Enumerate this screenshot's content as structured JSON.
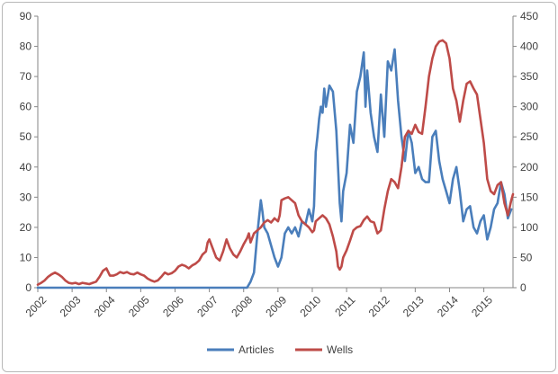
{
  "chart_data": {
    "type": "line",
    "title": "",
    "xlabel": "",
    "ylabel_left": "",
    "ylabel_right": "",
    "x_tick_labels": [
      "2002",
      "2003",
      "2004",
      "2005",
      "2006",
      "2007",
      "2008",
      "2009",
      "2010",
      "2011",
      "2012",
      "2013",
      "2014",
      "2015"
    ],
    "x_range": [
      2002.0,
      2015.85
    ],
    "y_left": {
      "lim": [
        0,
        90
      ],
      "ticks": [
        0,
        10,
        20,
        30,
        40,
        50,
        60,
        70,
        80,
        90
      ]
    },
    "y_right": {
      "lim": [
        0,
        450
      ],
      "ticks": [
        0,
        50,
        100,
        150,
        200,
        250,
        300,
        350,
        400,
        450
      ]
    },
    "grid": false,
    "legend": {
      "placement": "bottom",
      "items": [
        "Articles",
        "Wells"
      ]
    },
    "series": [
      {
        "name": "Articles",
        "axis": "left",
        "color": "#4a7ebb",
        "points": [
          [
            2002.0,
            0
          ],
          [
            2008.1,
            0
          ],
          [
            2008.2,
            2
          ],
          [
            2008.3,
            5
          ],
          [
            2008.4,
            18
          ],
          [
            2008.5,
            29
          ],
          [
            2008.55,
            25
          ],
          [
            2008.6,
            20
          ],
          [
            2008.7,
            18
          ],
          [
            2008.8,
            14
          ],
          [
            2008.9,
            10
          ],
          [
            2009.0,
            7
          ],
          [
            2009.1,
            10
          ],
          [
            2009.2,
            18
          ],
          [
            2009.3,
            20
          ],
          [
            2009.4,
            18
          ],
          [
            2009.5,
            20
          ],
          [
            2009.6,
            17
          ],
          [
            2009.7,
            22
          ],
          [
            2009.8,
            21
          ],
          [
            2009.9,
            26
          ],
          [
            2010.0,
            22
          ],
          [
            2010.05,
            27
          ],
          [
            2010.1,
            45
          ],
          [
            2010.15,
            50
          ],
          [
            2010.2,
            56
          ],
          [
            2010.25,
            60
          ],
          [
            2010.3,
            58
          ],
          [
            2010.35,
            66
          ],
          [
            2010.4,
            60
          ],
          [
            2010.5,
            67
          ],
          [
            2010.6,
            65
          ],
          [
            2010.7,
            52
          ],
          [
            2010.8,
            28
          ],
          [
            2010.85,
            22
          ],
          [
            2010.9,
            32
          ],
          [
            2011.0,
            38
          ],
          [
            2011.1,
            54
          ],
          [
            2011.2,
            48
          ],
          [
            2011.3,
            65
          ],
          [
            2011.4,
            70
          ],
          [
            2011.5,
            78
          ],
          [
            2011.55,
            60
          ],
          [
            2011.6,
            72
          ],
          [
            2011.7,
            58
          ],
          [
            2011.8,
            50
          ],
          [
            2011.9,
            45
          ],
          [
            2012.0,
            64
          ],
          [
            2012.1,
            50
          ],
          [
            2012.2,
            75
          ],
          [
            2012.3,
            72
          ],
          [
            2012.4,
            79
          ],
          [
            2012.5,
            62
          ],
          [
            2012.6,
            50
          ],
          [
            2012.7,
            42
          ],
          [
            2012.8,
            52
          ],
          [
            2012.9,
            48
          ],
          [
            2013.0,
            38
          ],
          [
            2013.1,
            40
          ],
          [
            2013.2,
            36
          ],
          [
            2013.3,
            35
          ],
          [
            2013.4,
            35
          ],
          [
            2013.5,
            50
          ],
          [
            2013.6,
            52
          ],
          [
            2013.7,
            42
          ],
          [
            2013.8,
            36
          ],
          [
            2013.9,
            32
          ],
          [
            2014.0,
            28
          ],
          [
            2014.1,
            36
          ],
          [
            2014.2,
            40
          ],
          [
            2014.3,
            32
          ],
          [
            2014.4,
            22
          ],
          [
            2014.5,
            26
          ],
          [
            2014.6,
            27
          ],
          [
            2014.7,
            20
          ],
          [
            2014.8,
            18
          ],
          [
            2014.9,
            22
          ],
          [
            2015.0,
            24
          ],
          [
            2015.1,
            16
          ],
          [
            2015.2,
            20
          ],
          [
            2015.3,
            26
          ],
          [
            2015.4,
            28
          ],
          [
            2015.5,
            35
          ],
          [
            2015.6,
            31
          ],
          [
            2015.7,
            23
          ],
          [
            2015.8,
            26
          ]
        ]
      },
      {
        "name": "Wells",
        "axis": "right",
        "color": "#be4b48",
        "points": [
          [
            2002.0,
            5
          ],
          [
            2002.1,
            8
          ],
          [
            2002.2,
            12
          ],
          [
            2002.3,
            18
          ],
          [
            2002.4,
            22
          ],
          [
            2002.5,
            25
          ],
          [
            2002.6,
            22
          ],
          [
            2002.7,
            18
          ],
          [
            2002.8,
            12
          ],
          [
            2002.9,
            8
          ],
          [
            2003.0,
            7
          ],
          [
            2003.1,
            8
          ],
          [
            2003.2,
            6
          ],
          [
            2003.3,
            8
          ],
          [
            2003.4,
            7
          ],
          [
            2003.5,
            6
          ],
          [
            2003.6,
            8
          ],
          [
            2003.7,
            10
          ],
          [
            2003.8,
            18
          ],
          [
            2003.9,
            28
          ],
          [
            2004.0,
            32
          ],
          [
            2004.1,
            20
          ],
          [
            2004.2,
            20
          ],
          [
            2004.3,
            22
          ],
          [
            2004.4,
            26
          ],
          [
            2004.5,
            24
          ],
          [
            2004.6,
            26
          ],
          [
            2004.7,
            23
          ],
          [
            2004.8,
            22
          ],
          [
            2004.9,
            25
          ],
          [
            2005.0,
            22
          ],
          [
            2005.1,
            20
          ],
          [
            2005.2,
            15
          ],
          [
            2005.3,
            12
          ],
          [
            2005.4,
            10
          ],
          [
            2005.5,
            12
          ],
          [
            2005.6,
            18
          ],
          [
            2005.7,
            25
          ],
          [
            2005.8,
            22
          ],
          [
            2005.9,
            24
          ],
          [
            2006.0,
            28
          ],
          [
            2006.1,
            35
          ],
          [
            2006.2,
            38
          ],
          [
            2006.3,
            36
          ],
          [
            2006.4,
            32
          ],
          [
            2006.5,
            37
          ],
          [
            2006.6,
            40
          ],
          [
            2006.7,
            45
          ],
          [
            2006.8,
            55
          ],
          [
            2006.9,
            60
          ],
          [
            2006.95,
            75
          ],
          [
            2007.0,
            80
          ],
          [
            2007.1,
            65
          ],
          [
            2007.2,
            50
          ],
          [
            2007.3,
            45
          ],
          [
            2007.4,
            60
          ],
          [
            2007.5,
            80
          ],
          [
            2007.6,
            65
          ],
          [
            2007.7,
            55
          ],
          [
            2007.8,
            50
          ],
          [
            2007.9,
            60
          ],
          [
            2008.0,
            72
          ],
          [
            2008.1,
            82
          ],
          [
            2008.15,
            90
          ],
          [
            2008.2,
            75
          ],
          [
            2008.3,
            90
          ],
          [
            2008.4,
            95
          ],
          [
            2008.5,
            100
          ],
          [
            2008.6,
            108
          ],
          [
            2008.7,
            112
          ],
          [
            2008.8,
            108
          ],
          [
            2008.9,
            115
          ],
          [
            2009.0,
            110
          ],
          [
            2009.05,
            120
          ],
          [
            2009.1,
            145
          ],
          [
            2009.2,
            148
          ],
          [
            2009.3,
            150
          ],
          [
            2009.4,
            145
          ],
          [
            2009.5,
            140
          ],
          [
            2009.6,
            120
          ],
          [
            2009.7,
            110
          ],
          [
            2009.8,
            105
          ],
          [
            2009.9,
            100
          ],
          [
            2010.0,
            92
          ],
          [
            2010.05,
            95
          ],
          [
            2010.1,
            110
          ],
          [
            2010.2,
            115
          ],
          [
            2010.3,
            120
          ],
          [
            2010.4,
            115
          ],
          [
            2010.5,
            105
          ],
          [
            2010.6,
            85
          ],
          [
            2010.7,
            60
          ],
          [
            2010.75,
            35
          ],
          [
            2010.8,
            30
          ],
          [
            2010.85,
            35
          ],
          [
            2010.9,
            50
          ],
          [
            2011.0,
            62
          ],
          [
            2011.1,
            78
          ],
          [
            2011.2,
            95
          ],
          [
            2011.3,
            100
          ],
          [
            2011.4,
            102
          ],
          [
            2011.5,
            112
          ],
          [
            2011.6,
            118
          ],
          [
            2011.7,
            110
          ],
          [
            2011.8,
            108
          ],
          [
            2011.9,
            90
          ],
          [
            2012.0,
            95
          ],
          [
            2012.1,
            130
          ],
          [
            2012.2,
            160
          ],
          [
            2012.3,
            180
          ],
          [
            2012.4,
            175
          ],
          [
            2012.5,
            165
          ],
          [
            2012.6,
            200
          ],
          [
            2012.7,
            250
          ],
          [
            2012.8,
            260
          ],
          [
            2012.9,
            255
          ],
          [
            2013.0,
            270
          ],
          [
            2013.1,
            258
          ],
          [
            2013.2,
            255
          ],
          [
            2013.3,
            300
          ],
          [
            2013.4,
            350
          ],
          [
            2013.5,
            380
          ],
          [
            2013.6,
            400
          ],
          [
            2013.7,
            408
          ],
          [
            2013.8,
            410
          ],
          [
            2013.9,
            405
          ],
          [
            2014.0,
            380
          ],
          [
            2014.1,
            330
          ],
          [
            2014.2,
            310
          ],
          [
            2014.3,
            275
          ],
          [
            2014.4,
            310
          ],
          [
            2014.5,
            338
          ],
          [
            2014.6,
            342
          ],
          [
            2014.7,
            330
          ],
          [
            2014.8,
            320
          ],
          [
            2014.9,
            280
          ],
          [
            2015.0,
            240
          ],
          [
            2015.1,
            180
          ],
          [
            2015.2,
            160
          ],
          [
            2015.3,
            155
          ],
          [
            2015.4,
            170
          ],
          [
            2015.5,
            175
          ],
          [
            2015.6,
            140
          ],
          [
            2015.7,
            120
          ],
          [
            2015.8,
            145
          ],
          [
            2015.85,
            155
          ]
        ]
      }
    ]
  }
}
